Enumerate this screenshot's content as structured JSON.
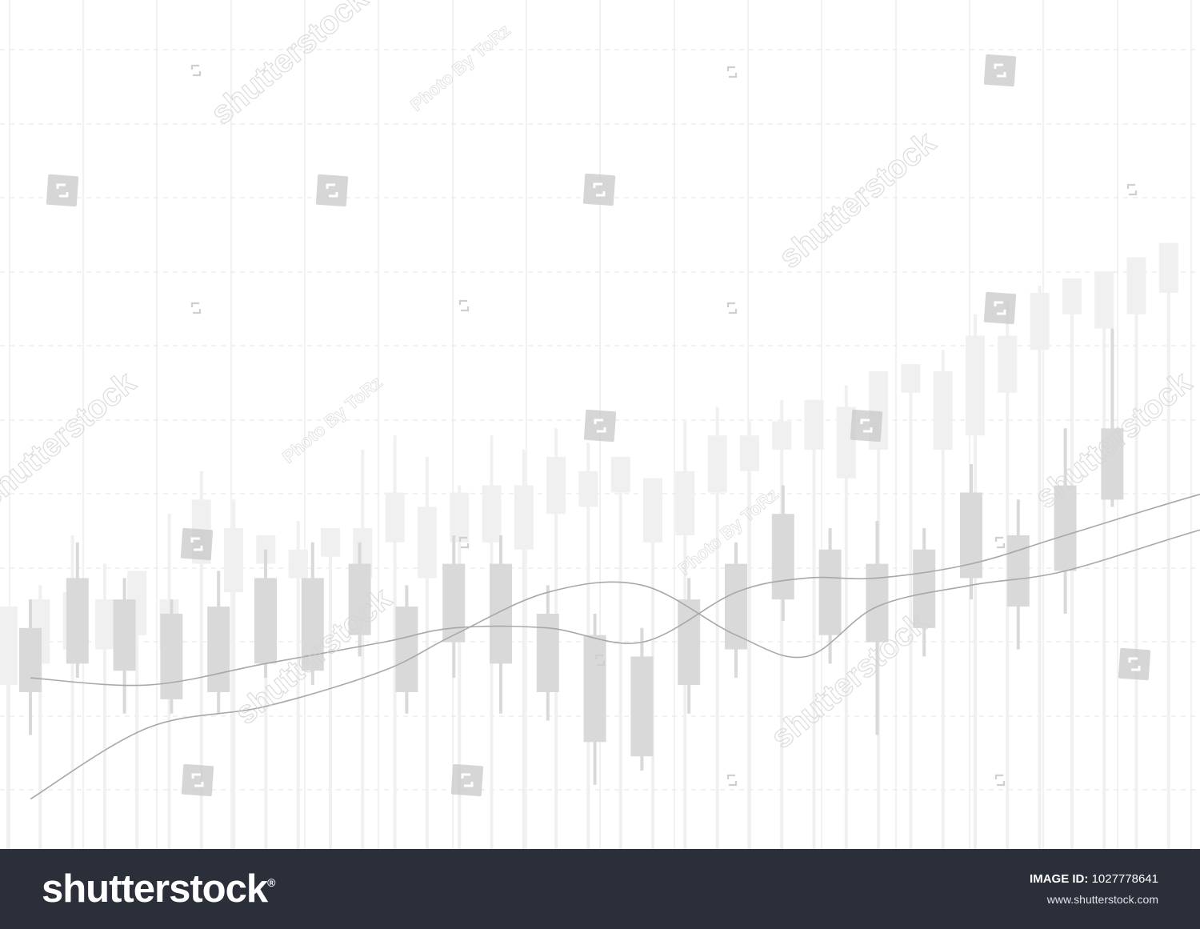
{
  "chart_data": {
    "type": "candlestick",
    "title": "",
    "xlabel": "",
    "ylabel": "",
    "axes_labels_shown": false,
    "grid": true,
    "grid_style": "vertical solid lines, horizontal dashed lines",
    "ylim": [
      0,
      100
    ],
    "series": [
      {
        "layer": "background",
        "candles": [
          {
            "x": 0,
            "open": 34,
            "close": 23,
            "high": 34,
            "low": 0
          },
          {
            "x": 1,
            "open": 26,
            "close": 35,
            "high": 37,
            "low": 0
          },
          {
            "x": 2,
            "open": 28,
            "close": 36,
            "high": 44,
            "low": 0
          },
          {
            "x": 3,
            "open": 35,
            "close": 28,
            "high": 40,
            "low": 0
          },
          {
            "x": 4,
            "open": 30,
            "close": 39,
            "high": 39,
            "low": 0
          },
          {
            "x": 5,
            "open": 35,
            "close": 28,
            "high": 47,
            "low": 0
          },
          {
            "x": 6,
            "open": 40,
            "close": 49,
            "high": 53,
            "low": 0
          },
          {
            "x": 7,
            "open": 45,
            "close": 36,
            "high": 49,
            "low": 0
          },
          {
            "x": 8,
            "open": 40,
            "close": 44,
            "high": 44,
            "low": 0
          },
          {
            "x": 9,
            "open": 42,
            "close": 38,
            "high": 46,
            "low": 0
          },
          {
            "x": 10,
            "open": 41,
            "close": 45,
            "high": 45,
            "low": 0
          },
          {
            "x": 11,
            "open": 45,
            "close": 38,
            "high": 56,
            "low": 0
          },
          {
            "x": 12,
            "open": 43,
            "close": 50,
            "high": 58,
            "low": 0
          },
          {
            "x": 13,
            "open": 38,
            "close": 48,
            "high": 55,
            "low": 0
          },
          {
            "x": 14,
            "open": 50,
            "close": 43,
            "high": 51,
            "low": 0
          },
          {
            "x": 15,
            "open": 43,
            "close": 51,
            "high": 58,
            "low": 0
          },
          {
            "x": 16,
            "open": 51,
            "close": 42,
            "high": 56,
            "low": 0
          },
          {
            "x": 17,
            "open": 47,
            "close": 55,
            "high": 59,
            "low": 0
          },
          {
            "x": 18,
            "open": 48,
            "close": 53,
            "high": 57,
            "low": 0
          },
          {
            "x": 19,
            "open": 50,
            "close": 55,
            "high": 55,
            "low": 0
          },
          {
            "x": 20,
            "open": 43,
            "close": 52,
            "high": 52,
            "low": 0
          },
          {
            "x": 21,
            "open": 44,
            "close": 53,
            "high": 60,
            "low": 0
          },
          {
            "x": 22,
            "open": 50,
            "close": 58,
            "high": 62,
            "low": 0
          },
          {
            "x": 23,
            "open": 53,
            "close": 58,
            "high": 60,
            "low": 0
          },
          {
            "x": 24,
            "open": 56,
            "close": 60,
            "high": 63,
            "low": 0
          },
          {
            "x": 25,
            "open": 56,
            "close": 63,
            "high": 63,
            "low": 0
          },
          {
            "x": 26,
            "open": 62,
            "close": 52,
            "high": 65,
            "low": 0
          },
          {
            "x": 27,
            "open": 56,
            "close": 67,
            "high": 67,
            "low": 0
          },
          {
            "x": 28,
            "open": 64,
            "close": 68,
            "high": 68,
            "low": 0
          },
          {
            "x": 29,
            "open": 67,
            "close": 56,
            "high": 70,
            "low": 0
          },
          {
            "x": 30,
            "open": 58,
            "close": 72,
            "high": 75,
            "low": 0
          },
          {
            "x": 31,
            "open": 64,
            "close": 72,
            "high": 77,
            "low": 0
          },
          {
            "x": 32,
            "open": 70,
            "close": 78,
            "high": 79,
            "low": 0
          },
          {
            "x": 33,
            "open": 75,
            "close": 80,
            "high": 80,
            "low": 0
          },
          {
            "x": 34,
            "open": 73,
            "close": 81,
            "high": 81,
            "low": 0
          },
          {
            "x": 35,
            "open": 75,
            "close": 83,
            "high": 83,
            "low": 0
          },
          {
            "x": 36,
            "open": 78,
            "close": 85,
            "high": 85,
            "low": 0
          }
        ]
      },
      {
        "layer": "foreground",
        "candles": [
          {
            "x": 0,
            "open": 31,
            "close": 22,
            "high": 35,
            "low": 16
          },
          {
            "x": 1,
            "open": 38,
            "close": 26,
            "high": 43,
            "low": 24
          },
          {
            "x": 2,
            "open": 35,
            "close": 25,
            "high": 38,
            "low": 19
          },
          {
            "x": 3,
            "open": 33,
            "close": 21,
            "high": 35,
            "low": 19
          },
          {
            "x": 4,
            "open": 34,
            "close": 22,
            "high": 39,
            "low": 19
          },
          {
            "x": 5,
            "open": 38,
            "close": 26,
            "high": 42,
            "low": 24
          },
          {
            "x": 6,
            "open": 38,
            "close": 25,
            "high": 43,
            "low": 23
          },
          {
            "x": 7,
            "open": 40,
            "close": 30,
            "high": 43,
            "low": 27
          },
          {
            "x": 8,
            "open": 34,
            "close": 22,
            "high": 37,
            "low": 19
          },
          {
            "x": 9,
            "open": 40,
            "close": 29,
            "high": 44,
            "low": 24
          },
          {
            "x": 10,
            "open": 40,
            "close": 26,
            "high": 44,
            "low": 19
          },
          {
            "x": 11,
            "open": 33,
            "close": 22,
            "high": 37,
            "low": 18
          },
          {
            "x": 12,
            "open": 30,
            "close": 15,
            "high": 33,
            "low": 9
          },
          {
            "x": 13,
            "open": 27,
            "close": 13,
            "high": 31,
            "low": 11
          },
          {
            "x": 14,
            "open": 35,
            "close": 23,
            "high": 38,
            "low": 19
          },
          {
            "x": 15,
            "open": 40,
            "close": 28,
            "high": 43,
            "low": 24
          },
          {
            "x": 16,
            "open": 47,
            "close": 35,
            "high": 51,
            "low": 32
          },
          {
            "x": 17,
            "open": 42,
            "close": 30,
            "high": 45,
            "low": 26
          },
          {
            "x": 18,
            "open": 40,
            "close": 29,
            "high": 46,
            "low": 16
          },
          {
            "x": 19,
            "open": 42,
            "close": 31,
            "high": 45,
            "low": 27
          },
          {
            "x": 20,
            "open": 50,
            "close": 38,
            "high": 54,
            "low": 35
          },
          {
            "x": 21,
            "open": 44,
            "close": 34,
            "high": 49,
            "low": 28
          },
          {
            "x": 22,
            "open": 51,
            "close": 39,
            "high": 59,
            "low": 33
          },
          {
            "x": 23,
            "open": 59,
            "close": 49,
            "high": 73,
            "low": 48
          }
        ]
      }
    ],
    "moving_averages": [
      {
        "points": [
          [
            0,
            24
          ],
          [
            2.5,
            23
          ],
          [
            5,
            26
          ],
          [
            7.5,
            29
          ],
          [
            9,
            31
          ],
          [
            11,
            31
          ],
          [
            13,
            29
          ],
          [
            15,
            36
          ],
          [
            16.5,
            38
          ],
          [
            18,
            38
          ],
          [
            20,
            40
          ],
          [
            22,
            44
          ],
          [
            25,
            50
          ],
          [
            28,
            55
          ],
          [
            30,
            59
          ],
          [
            31.2,
            59.3
          ]
        ]
      },
      {
        "points": [
          [
            0,
            7
          ],
          [
            2.5,
            17
          ],
          [
            5,
            20
          ],
          [
            7.5,
            25
          ],
          [
            9,
            30
          ],
          [
            11,
            36
          ],
          [
            13,
            37
          ],
          [
            15,
            30
          ],
          [
            16.5,
            27
          ],
          [
            18,
            34
          ],
          [
            20,
            37
          ],
          [
            22,
            39
          ],
          [
            25,
            45
          ],
          [
            28,
            50
          ],
          [
            30,
            54
          ],
          [
            31.2,
            56
          ]
        ]
      }
    ]
  },
  "watermark": {
    "diagonal_texts": [
      "shutterstock",
      "Photo By ToRz"
    ],
    "badge_icon": "shutterstock-badge-icon"
  },
  "footer": {
    "logo_text": "shutterstock",
    "registered_mark": "®",
    "image_id_label": "IMAGE ID:",
    "image_id_value": "1027778641",
    "site_url": "www.shutterstock.com"
  },
  "colors": {
    "background": "#ffffff",
    "grid": "#e5e5e5",
    "background_candle": "#f0f0f0",
    "foreground_candle": "#d9d9d9",
    "moving_average": "#a8a8a8",
    "footer_background": "#2a2f3a",
    "footer_text": "#ffffff"
  }
}
